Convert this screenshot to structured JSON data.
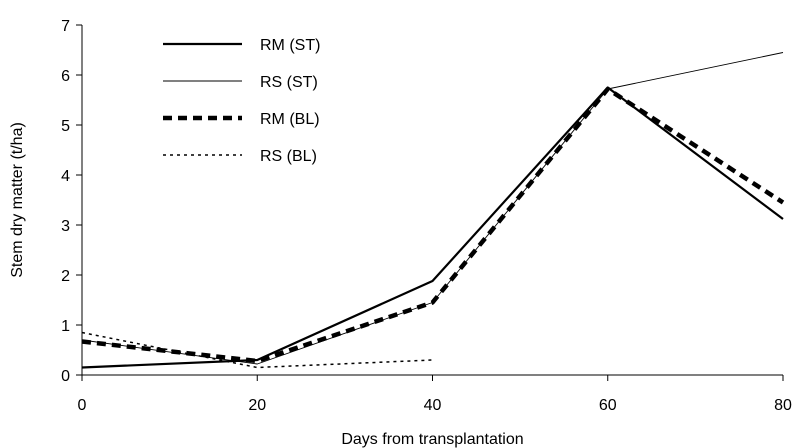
{
  "chart_data": {
    "type": "line",
    "xlabel": "Days from transplantation",
    "ylabel": "Stem dry matter (t/ha)",
    "xlim": [
      0,
      80
    ],
    "ylim": [
      0,
      7
    ],
    "xticks": [
      0,
      20,
      40,
      60,
      80
    ],
    "yticks": [
      0,
      1,
      2,
      3,
      4,
      5,
      6,
      7
    ],
    "xtick_labels": [
      "0",
      "20",
      "40",
      "60",
      "80"
    ],
    "ytick_labels": [
      "0",
      "1",
      "2",
      "3",
      "4",
      "5",
      "6",
      "7"
    ],
    "grid": false,
    "legend_position": "top-left",
    "series": [
      {
        "name": "RM (ST)",
        "style": "solid-thick",
        "color": "#000000",
        "x": [
          0,
          20,
          40,
          60,
          80
        ],
        "y": [
          0.15,
          0.3,
          1.88,
          5.75,
          3.12
        ]
      },
      {
        "name": "RS (ST)",
        "style": "solid-thin",
        "color": "#000000",
        "x": [
          0,
          20,
          40,
          60,
          80
        ],
        "y": [
          0.7,
          0.22,
          1.45,
          5.72,
          6.45
        ]
      },
      {
        "name": "RM (BL)",
        "style": "dashed-thick",
        "color": "#000000",
        "x": [
          0,
          20,
          40,
          60,
          80
        ],
        "y": [
          0.67,
          0.28,
          1.45,
          5.72,
          3.45
        ]
      },
      {
        "name": "RS (BL)",
        "style": "dotted",
        "color": "#000000",
        "x": [
          0,
          20,
          40
        ],
        "y": [
          0.85,
          0.15,
          0.3
        ]
      }
    ]
  }
}
